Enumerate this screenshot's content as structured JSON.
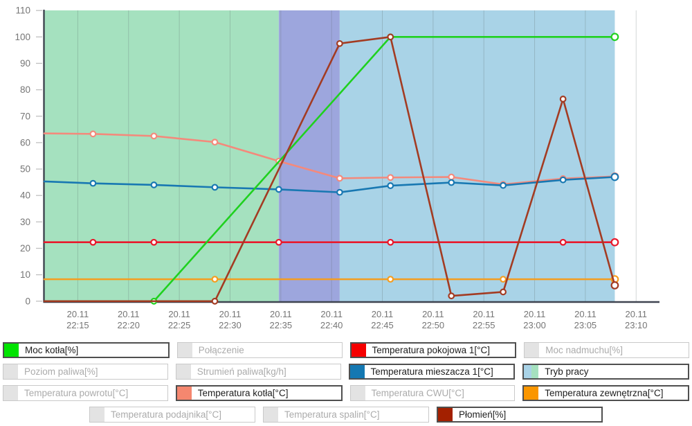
{
  "chart_data": {
    "type": "line",
    "title": "",
    "xlabel": "",
    "ylabel": "",
    "x_unit": "minutes after 22:00 on 20.11",
    "x_range_minutes": [
      11.7,
      72.3
    ],
    "y_range": [
      0,
      110
    ],
    "y_step": 10,
    "grid": "vertical-only",
    "x_ticks": [
      {
        "minute": 15,
        "date": "20.11",
        "time": "22:15"
      },
      {
        "minute": 20,
        "date": "20.11",
        "time": "22:20"
      },
      {
        "minute": 25,
        "date": "20.11",
        "time": "22:25"
      },
      {
        "minute": 30,
        "date": "20.11",
        "time": "22:30"
      },
      {
        "minute": 35,
        "date": "20.11",
        "time": "22:35"
      },
      {
        "minute": 40,
        "date": "20.11",
        "time": "22:40"
      },
      {
        "minute": 45,
        "date": "20.11",
        "time": "22:45"
      },
      {
        "minute": 50,
        "date": "20.11",
        "time": "22:50"
      },
      {
        "minute": 55,
        "date": "20.11",
        "time": "22:55"
      },
      {
        "minute": 60,
        "date": "20.11",
        "time": "23:00"
      },
      {
        "minute": 65,
        "date": "20.11",
        "time": "23:05"
      },
      {
        "minute": 70,
        "date": "20.11",
        "time": "23:10"
      }
    ],
    "work_mode_regions": [
      {
        "name": "tryb-1",
        "from": 11.7,
        "to": 34.8,
        "color": "#a5e1bf"
      },
      {
        "name": "tryb-2",
        "from": 34.8,
        "to": 40.8,
        "color": "#9da6dd"
      },
      {
        "name": "tryb-3",
        "from": 40.8,
        "to": 67.9,
        "color": "#a9d3e7"
      }
    ],
    "series": [
      {
        "name": "Temperatura kotła[°C]",
        "color": "#f4897b",
        "points": [
          [
            11.7,
            63.5
          ],
          [
            16.5,
            63.3
          ],
          [
            22.5,
            62.5
          ],
          [
            28.5,
            60.2
          ],
          [
            34.8,
            53.0
          ],
          [
            40.8,
            46.5
          ],
          [
            45.8,
            46.8
          ],
          [
            51.8,
            47.0
          ],
          [
            56.9,
            44.2
          ],
          [
            62.8,
            46.4
          ],
          [
            67.9,
            47.2
          ]
        ],
        "markers_from": 1
      },
      {
        "name": "Temperatura mieszacza 1[°C]",
        "color": "#1878b2",
        "points": [
          [
            11.7,
            45.3
          ],
          [
            16.5,
            44.6
          ],
          [
            22.5,
            44.0
          ],
          [
            28.5,
            43.1
          ],
          [
            34.8,
            42.3
          ],
          [
            40.8,
            41.2
          ],
          [
            45.8,
            43.7
          ],
          [
            51.8,
            44.9
          ],
          [
            56.9,
            43.8
          ],
          [
            62.8,
            45.9
          ],
          [
            67.9,
            47.0
          ]
        ],
        "markers_from": 1
      },
      {
        "name": "Temperatura pokojowa 1[°C]",
        "color": "#e8192c",
        "points": [
          [
            11.7,
            22.3
          ],
          [
            16.5,
            22.3
          ],
          [
            22.5,
            22.3
          ],
          [
            34.8,
            22.3
          ],
          [
            45.8,
            22.3
          ],
          [
            62.8,
            22.3
          ],
          [
            67.9,
            22.3
          ]
        ],
        "markers_from": 1
      },
      {
        "name": "Temperatura zewnętrzna[°C]",
        "color": "#f59d1f",
        "points": [
          [
            11.7,
            8.3
          ],
          [
            28.5,
            8.3
          ],
          [
            45.8,
            8.3
          ],
          [
            56.9,
            8.3
          ],
          [
            67.9,
            8.3
          ]
        ],
        "markers_from": 1
      },
      {
        "name": "Moc kotła[%]",
        "color": "#1fd11f",
        "points": [
          [
            22.5,
            0
          ],
          [
            45.8,
            100
          ],
          [
            67.9,
            100
          ]
        ],
        "markers_from": 0
      },
      {
        "name": "Płomień[%]",
        "color": "#a33b22",
        "points": [
          [
            11.7,
            0
          ],
          [
            28.5,
            0
          ],
          [
            40.8,
            97.5
          ],
          [
            45.8,
            100
          ],
          [
            51.8,
            2
          ],
          [
            56.9,
            3.5
          ],
          [
            62.8,
            76.5
          ],
          [
            67.9,
            6
          ]
        ],
        "markers_from": 1
      }
    ]
  },
  "legend": {
    "rows": [
      {
        "centered": false,
        "items": [
          {
            "label": "Moc kotła[%]",
            "active": true,
            "swatch": "#00e400"
          },
          {
            "label": "Połączenie",
            "active": false,
            "swatch": "#e3e3e3"
          },
          {
            "label": "Temperatura pokojowa 1[°C]",
            "active": true,
            "swatch": "#f50000"
          },
          {
            "label": "Moc nadmuchu[%]",
            "active": false,
            "swatch": "#e3e3e3"
          }
        ]
      },
      {
        "centered": false,
        "items": [
          {
            "label": "Poziom paliwa[%]",
            "active": false,
            "swatch": "#e3e3e3"
          },
          {
            "label": "Strumień paliwa[kg/h]",
            "active": false,
            "swatch": "#e3e3e3"
          },
          {
            "label": "Temperatura mieszacza 1[°C]",
            "active": true,
            "swatch": "#1478b2"
          },
          {
            "label": "Tryb pracy",
            "active": true,
            "swatch": [
              "#a9d3e7",
              "#a5e1bf"
            ]
          }
        ]
      },
      {
        "centered": false,
        "items": [
          {
            "label": "Temperatura powrotu[°C]",
            "active": false,
            "swatch": "#e3e3e3"
          },
          {
            "label": "Temperatura kotła[°C]",
            "active": true,
            "swatch": "#f5876f"
          },
          {
            "label": "Temperatura CWU[°C]",
            "active": false,
            "swatch": "#e3e3e3"
          },
          {
            "label": "Temperatura zewnętrzna[°C]",
            "active": true,
            "swatch": "#fa9600"
          }
        ]
      },
      {
        "centered": true,
        "items": [
          {
            "label": "Temperatura podajnika[°C]",
            "active": false,
            "swatch": "#e3e3e3"
          },
          {
            "label": "Temperatura spalin[°C]",
            "active": false,
            "swatch": "#e3e3e3"
          },
          {
            "label": "Płomień[%]",
            "active": true,
            "swatch": "#a32000"
          }
        ]
      }
    ]
  },
  "style": {
    "axis_color": "#3f4450",
    "tick_color": "#c0c0c0",
    "grid_color": "#5f6b6b",
    "label_color": "#757575"
  }
}
